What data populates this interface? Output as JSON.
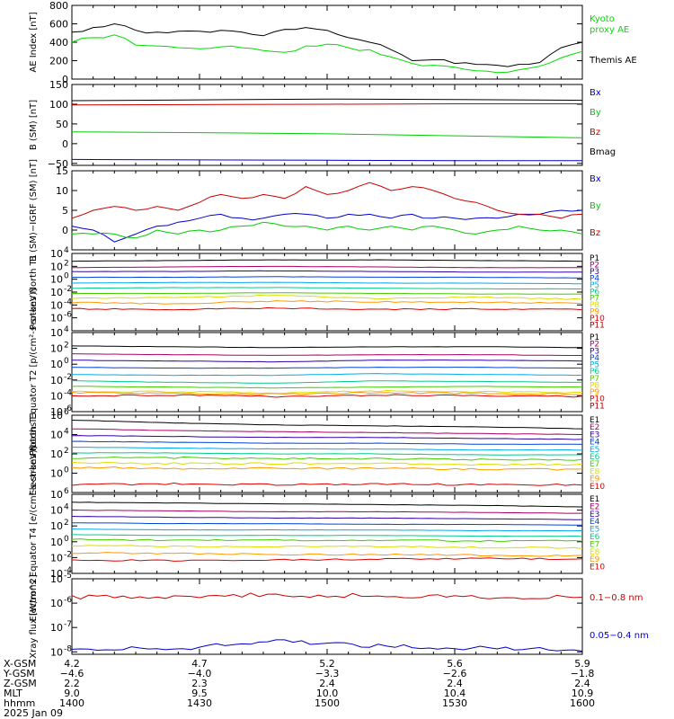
{
  "chart_data": [
    {
      "type": "line",
      "ylabel": "AE Index [nT]",
      "yscale": "linear",
      "ylim": [
        0,
        800
      ],
      "yticks": [
        "0",
        "200",
        "400",
        "600",
        "800"
      ],
      "x": [
        "1400",
        "1405",
        "1410",
        "1415",
        "1420",
        "1425",
        "1430",
        "1435",
        "1440",
        "1445",
        "1450",
        "1455",
        "1500",
        "1505",
        "1510",
        "1515",
        "1520",
        "1525",
        "1530",
        "1535",
        "1540",
        "1545",
        "1550",
        "1555",
        "1600"
      ],
      "series": [
        {
          "name": "Kyoto proxy AE",
          "label": "Kyoto\nproxy AE",
          "color": "#00dd00",
          "values": [
            400,
            450,
            480,
            370,
            360,
            340,
            330,
            350,
            340,
            310,
            290,
            360,
            380,
            340,
            320,
            240,
            170,
            150,
            130,
            90,
            70,
            100,
            140,
            230,
            300
          ]
        },
        {
          "name": "Themis AE",
          "label": "Themis AE",
          "color": "#000000",
          "values": [
            510,
            560,
            600,
            530,
            510,
            520,
            520,
            530,
            510,
            470,
            540,
            560,
            530,
            450,
            400,
            320,
            200,
            210,
            170,
            160,
            150,
            160,
            180,
            340,
            400
          ]
        }
      ]
    },
    {
      "type": "line",
      "ylabel": "B (SM) [nT]",
      "yscale": "linear",
      "ylim": [
        -55,
        150
      ],
      "yticks": [
        "−50",
        "0",
        "50",
        "100",
        "150"
      ],
      "x": [
        "1400",
        "1430",
        "1500",
        "1530",
        "1600"
      ],
      "series": [
        {
          "name": "Bx",
          "color": "#0000cc",
          "values": [
            -40,
            -41,
            -42,
            -43,
            -43
          ]
        },
        {
          "name": "By",
          "color": "#00cc00",
          "values": [
            30,
            28,
            25,
            20,
            15
          ]
        },
        {
          "name": "Bz",
          "color": "#cc0000",
          "values": [
            98,
            99,
            100,
            101,
            101
          ]
        },
        {
          "name": "Bmag",
          "color": "#000000",
          "values": [
            109,
            111,
            113,
            112,
            110
          ]
        }
      ]
    },
    {
      "type": "line",
      "ylabel": "B (SM)−IGRF (SM) [nT]",
      "yscale": "linear",
      "ylim": [
        -5,
        15
      ],
      "yticks": [
        "0",
        "5",
        "10",
        "15"
      ],
      "x": [
        "1400",
        "1405",
        "1410",
        "1415",
        "1420",
        "1425",
        "1430",
        "1435",
        "1440",
        "1445",
        "1450",
        "1455",
        "1500",
        "1505",
        "1510",
        "1515",
        "1520",
        "1525",
        "1530",
        "1535",
        "1540",
        "1545",
        "1550",
        "1555",
        "1600"
      ],
      "series": [
        {
          "name": "Bx",
          "color": "#0000cc",
          "values": [
            1,
            0,
            -3,
            -1,
            1,
            2,
            3,
            4,
            3,
            3,
            4,
            4,
            3,
            4,
            4,
            3,
            4,
            3,
            3,
            3,
            3,
            4,
            4,
            5,
            5
          ]
        },
        {
          "name": "By",
          "color": "#00cc00",
          "values": [
            -1,
            -1,
            -1,
            -2,
            0,
            -1,
            0,
            0,
            1,
            2,
            1,
            1,
            0,
            1,
            0,
            1,
            0,
            1,
            0,
            -1,
            0,
            1,
            0,
            0,
            -1
          ]
        },
        {
          "name": "Bz",
          "color": "#cc0000",
          "values": [
            3,
            5,
            6,
            5,
            6,
            5,
            7,
            9,
            8,
            9,
            8,
            11,
            9,
            10,
            12,
            10,
            11,
            10,
            8,
            7,
            5,
            4,
            4,
            3,
            4
          ]
        }
      ]
    },
    {
      "type": "line",
      "ylabel": "Protons North T1",
      "yscale": "log",
      "ylim": [
        -8,
        4
      ],
      "yticks": [
        "10-8",
        "10-6",
        "10-4",
        "10-2",
        "10^0",
        "10^2",
        "10^4"
      ],
      "tick_labels": [
        {
          "m": "10",
          "e": "-6",
          "v": -6
        },
        {
          "m": "10",
          "e": "-4",
          "v": -4
        },
        {
          "m": "10",
          "e": "-2",
          "v": -2
        },
        {
          "m": "10",
          "e": "0",
          "v": 0
        },
        {
          "m": "10",
          "e": "2",
          "v": 2
        },
        {
          "m": "10",
          "e": "4",
          "v": 4
        }
      ],
      "series": [
        {
          "name": "P1",
          "color": "#000000",
          "levels": [
            2.8,
            2.9,
            3.0,
            3.0,
            2.9,
            2.8
          ]
        },
        {
          "name": "P2",
          "color": "#aa0066",
          "levels": [
            1.8,
            1.9,
            2.0,
            1.9,
            1.8,
            1.8
          ]
        },
        {
          "name": "P3",
          "color": "#3300aa",
          "levels": [
            1.2,
            1.2,
            1.3,
            1.2,
            1.1,
            1.1
          ]
        },
        {
          "name": "P4",
          "color": "#0044dd",
          "levels": [
            0.3,
            0.3,
            0.4,
            0.3,
            0.3,
            0.2
          ]
        },
        {
          "name": "P5",
          "color": "#00aaee",
          "levels": [
            -0.6,
            -0.5,
            -0.5,
            -0.6,
            -0.6,
            -0.7
          ]
        },
        {
          "name": "P6",
          "color": "#00cc88",
          "levels": [
            -1.4,
            -1.3,
            -1.3,
            -1.4,
            -1.5,
            -1.5
          ]
        },
        {
          "name": "P7",
          "color": "#44cc00",
          "levels": [
            -2.2,
            -2.2,
            -2.1,
            -2.2,
            -2.3,
            -2.3
          ]
        },
        {
          "name": "P8",
          "color": "#dddd00",
          "levels": [
            -3.0,
            -2.8,
            -2.5,
            -3.0,
            -2.8,
            -3.1
          ]
        },
        {
          "name": "P9",
          "color": "#ff9900",
          "levels": [
            -3.6,
            -3.8,
            -3.4,
            -3.5,
            -3.6,
            -3.7
          ]
        },
        {
          "name": "P10",
          "color": "#dd0000",
          "levels": [
            -4.6,
            -4.7,
            -4.5,
            -4.7,
            -4.6,
            -4.7
          ]
        },
        {
          "name": "P11",
          "color": "#990000",
          "levels": [
            null,
            null,
            null,
            null,
            null,
            null
          ]
        }
      ]
    },
    {
      "type": "line",
      "ylabel": "Protons Equator T2 [p/(cm²-s-sr-keV)]",
      "yscale": "log",
      "ylim": [
        -6,
        4
      ],
      "tick_labels": [
        {
          "m": "10",
          "e": "-6",
          "v": -6
        },
        {
          "m": "10",
          "e": "-4",
          "v": -4
        },
        {
          "m": "10",
          "e": "-2",
          "v": -2
        },
        {
          "m": "10",
          "e": "0",
          "v": 0
        },
        {
          "m": "10",
          "e": "2",
          "v": 2
        },
        {
          "m": "10",
          "e": "4",
          "v": 4
        }
      ],
      "series": [
        {
          "name": "P1",
          "color": "#000000",
          "levels": [
            2.3,
            2.2,
            2.1,
            2.2,
            2.2,
            2.1
          ]
        },
        {
          "name": "P2",
          "color": "#aa0066",
          "levels": [
            1.3,
            1.2,
            1.1,
            1.2,
            1.2,
            1.1
          ]
        },
        {
          "name": "P3",
          "color": "#3300aa",
          "levels": [
            0.5,
            0.4,
            0.3,
            0.5,
            0.5,
            0.4
          ]
        },
        {
          "name": "P4",
          "color": "#0044dd",
          "levels": [
            -0.4,
            -0.5,
            -0.5,
            -0.4,
            -0.4,
            -0.5
          ]
        },
        {
          "name": "P5",
          "color": "#00aaee",
          "levels": [
            -1.3,
            -1.4,
            -1.4,
            -1.2,
            -1.3,
            -1.4
          ]
        },
        {
          "name": "P6",
          "color": "#00cc88",
          "levels": [
            -2.1,
            -2.3,
            -2.4,
            -2.1,
            -2.2,
            -2.3
          ]
        },
        {
          "name": "P7",
          "color": "#44cc00",
          "levels": [
            -2.8,
            -2.9,
            -3.0,
            -2.9,
            -2.8,
            -2.9
          ]
        },
        {
          "name": "P8",
          "color": "#dddd00",
          "levels": [
            -3.4,
            -3.5,
            -3.6,
            -3.4,
            -3.5,
            -3.6
          ]
        },
        {
          "name": "P9",
          "color": "#ff9900",
          "levels": [
            -3.6,
            -3.7,
            -3.8,
            -3.6,
            -3.7,
            -3.8
          ]
        },
        {
          "name": "P10",
          "color": "#dd0000",
          "levels": [
            -4.0,
            -3.9,
            -4.1,
            -3.9,
            -4.0,
            -4.1
          ]
        },
        {
          "name": "P11",
          "color": "#990000",
          "levels": [
            null,
            null,
            null,
            null,
            null,
            null
          ]
        }
      ]
    },
    {
      "type": "line",
      "ylabel": "Electrons North T3",
      "yscale": "log",
      "ylim": [
        -2,
        6
      ],
      "tick_labels": [
        {
          "m": "10",
          "e": "0",
          "v": 0
        },
        {
          "m": "10",
          "e": "2",
          "v": 2
        },
        {
          "m": "10",
          "e": "4",
          "v": 4
        },
        {
          "m": "10",
          "e": "6",
          "v": 6
        }
      ],
      "series": [
        {
          "name": "E1",
          "color": "#000000",
          "levels": [
            5.5,
            5.2,
            5.0,
            4.9,
            4.8,
            4.6
          ]
        },
        {
          "name": "E2",
          "color": "#aa0066",
          "levels": [
            4.6,
            4.4,
            4.3,
            4.2,
            4.1,
            4.0
          ]
        },
        {
          "name": "E3",
          "color": "#3300aa",
          "levels": [
            3.9,
            3.8,
            3.7,
            3.7,
            3.6,
            3.5
          ]
        },
        {
          "name": "E4",
          "color": "#0044dd",
          "levels": [
            3.3,
            3.2,
            3.1,
            3.1,
            3.0,
            3.0
          ]
        },
        {
          "name": "E5",
          "color": "#00aaee",
          "levels": [
            2.7,
            2.6,
            2.5,
            2.5,
            2.4,
            2.4
          ]
        },
        {
          "name": "E6",
          "color": "#00cc88",
          "levels": [
            2.1,
            2.1,
            2.0,
            2.0,
            1.9,
            1.9
          ]
        },
        {
          "name": "E7",
          "color": "#44cc00",
          "levels": [
            1.6,
            1.6,
            1.5,
            1.5,
            1.4,
            1.4
          ]
        },
        {
          "name": "E8",
          "color": "#dddd00",
          "levels": [
            1.1,
            1.0,
            1.0,
            1.0,
            0.9,
            0.9
          ]
        },
        {
          "name": "E9",
          "color": "#ff9900",
          "levels": [
            0.6,
            0.5,
            0.5,
            0.5,
            0.4,
            0.4
          ]
        },
        {
          "name": "E10",
          "color": "#dd0000",
          "levels": [
            -1.2,
            -1.1,
            -1.2,
            -1.1,
            -1.2,
            -1.2
          ]
        }
      ]
    },
    {
      "type": "line",
      "ylabel": "Electrons Equator T4 [e/(cm²-s-sr-keV)]",
      "yscale": "log",
      "ylim": [
        -4,
        6
      ],
      "tick_labels": [
        {
          "m": "10",
          "e": "-4",
          "v": -4
        },
        {
          "m": "10",
          "e": "-2",
          "v": -2
        },
        {
          "m": "10",
          "e": "0",
          "v": 0
        },
        {
          "m": "10",
          "e": "2",
          "v": 2
        },
        {
          "m": "10",
          "e": "4",
          "v": 4
        },
        {
          "m": "10",
          "e": "6",
          "v": 6
        }
      ],
      "series": [
        {
          "name": "E1",
          "color": "#000000",
          "levels": [
            5.0,
            4.9,
            4.8,
            4.7,
            4.6,
            4.4
          ]
        },
        {
          "name": "E2",
          "color": "#aa0066",
          "levels": [
            4.0,
            3.9,
            3.8,
            3.8,
            3.7,
            3.6
          ]
        },
        {
          "name": "E3",
          "color": "#3300aa",
          "levels": [
            3.2,
            3.1,
            3.0,
            3.0,
            2.9,
            2.8
          ]
        },
        {
          "name": "E4",
          "color": "#0044dd",
          "levels": [
            2.4,
            2.3,
            2.3,
            2.2,
            2.2,
            2.1
          ]
        },
        {
          "name": "E5",
          "color": "#00aaee",
          "levels": [
            1.6,
            1.5,
            1.5,
            1.5,
            1.4,
            1.4
          ]
        },
        {
          "name": "E6",
          "color": "#00cc88",
          "levels": [
            0.9,
            0.8,
            0.8,
            0.8,
            0.7,
            0.7
          ]
        },
        {
          "name": "E7",
          "color": "#44cc00",
          "levels": [
            0.3,
            0.2,
            0.2,
            0.2,
            0.1,
            0.1
          ]
        },
        {
          "name": "E8",
          "color": "#dddd00",
          "levels": [
            -0.5,
            -0.6,
            -0.6,
            -0.6,
            -0.7,
            -0.8
          ]
        },
        {
          "name": "E9",
          "color": "#ff9900",
          "levels": [
            -1.4,
            -1.5,
            -1.6,
            -1.6,
            -1.7,
            -1.8
          ]
        },
        {
          "name": "E10",
          "color": "#dd0000",
          "levels": [
            -2.3,
            -2.4,
            -2.3,
            -2.2,
            -2.1,
            -2.2
          ]
        }
      ]
    },
    {
      "type": "line",
      "ylabel": "Xray flux [W/m^2]",
      "yscale": "log",
      "ylim": [
        -8.1,
        -5
      ],
      "tick_labels": [
        {
          "m": "10",
          "e": "-8",
          "v": -8
        },
        {
          "m": "10",
          "e": "-7",
          "v": -7
        },
        {
          "m": "10",
          "e": "-6",
          "v": -6
        },
        {
          "m": "10",
          "e": "-5",
          "v": -5
        }
      ],
      "series": [
        {
          "name": "0.1−0.8 nm",
          "color": "#cc0000",
          "levels": [
            -5.75,
            -5.72,
            -5.66,
            -5.7,
            -5.74,
            -5.78
          ]
        },
        {
          "name": "0.05−0.4 nm",
          "color": "#0000cc",
          "levels": [
            -7.85,
            -7.9,
            -7.55,
            -7.75,
            -7.85,
            -7.95
          ]
        }
      ]
    }
  ],
  "axis_table": {
    "rows": [
      {
        "label": "X-GSM",
        "values": [
          "4.2",
          "4.7",
          "5.2",
          "5.6",
          "5.9"
        ]
      },
      {
        "label": "Y-GSM",
        "values": [
          "−4.6",
          "−4.0",
          "−3.3",
          "−2.6",
          "−1.8"
        ]
      },
      {
        "label": "Z-GSM",
        "values": [
          "2.2",
          "2.3",
          "2.4",
          "2.4",
          "2.4"
        ]
      },
      {
        "label": "MLT",
        "values": [
          "9.0",
          "9.5",
          "10.0",
          "10.4",
          "10.9"
        ]
      },
      {
        "label": "hhmm",
        "values": [
          "1400",
          "1430",
          "1500",
          "1530",
          "1600"
        ]
      }
    ],
    "date": "2025 Jan 09"
  }
}
